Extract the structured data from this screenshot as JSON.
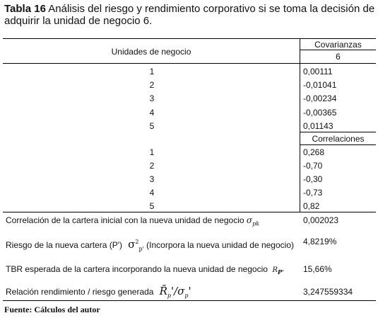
{
  "caption": {
    "label": "Tabla 16",
    "text": "Análisis del riesgo y rendimiento corporativo si se toma la decisión de adquirir la unidad de negocio 6."
  },
  "table": {
    "col1_header": "Unidades de negocio",
    "cov_header": "Covarianzas",
    "cov_subheader": "6",
    "corr_header": "Correlaciones",
    "covariances": [
      {
        "unit": "1",
        "value": "0,00111"
      },
      {
        "unit": "2",
        "value": "-0,01041"
      },
      {
        "unit": "3",
        "value": "-0,00234"
      },
      {
        "unit": "4",
        "value": "-0,00365"
      },
      {
        "unit": "5",
        "value": "0,01143"
      }
    ],
    "correlations": [
      {
        "unit": "1",
        "value": "0,268"
      },
      {
        "unit": "2",
        "value": "-0,70"
      },
      {
        "unit": "3",
        "value": "-0,30"
      },
      {
        "unit": "4",
        "value": "-0,73"
      },
      {
        "unit": "5",
        "value": "0,82"
      }
    ],
    "summary": [
      {
        "label": "Correlación de la cartera inicial con la nueva unidad de negocio",
        "value": "0,002023"
      },
      {
        "label_pre": "Riesgo de la nueva cartera (P')",
        "label_post": "(Incorpora la nueva unidad de negocio)",
        "value": "4,8219%"
      },
      {
        "label": "TBR esperada de la cartera incorporando la nueva unidad de negocio",
        "value": "15,66%"
      },
      {
        "label": "Relación rendimiento / riesgo generada",
        "value": "3,247559334"
      }
    ]
  },
  "footer": "Fuente: Cálculos del autor"
}
